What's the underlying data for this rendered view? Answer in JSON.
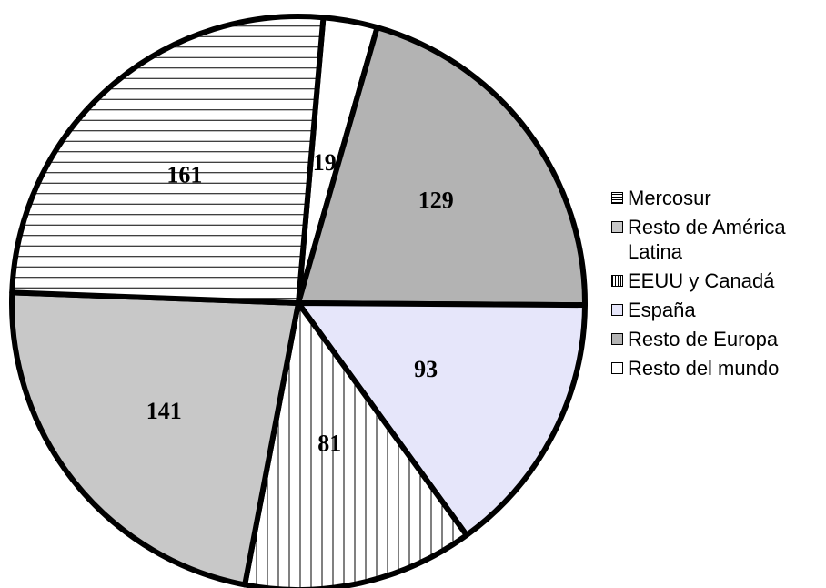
{
  "chart_data": {
    "type": "pie",
    "title": "",
    "slices": [
      {
        "label": "Resto del mundo",
        "value": 19,
        "fill": "#ffffff",
        "pattern": "none"
      },
      {
        "label": "Resto de Europa",
        "value": 129,
        "fill": "#b3b3b3",
        "pattern": "none"
      },
      {
        "label": "España",
        "value": 93,
        "fill": "#e6e6fa",
        "pattern": "none"
      },
      {
        "label": "EEUU y Canadá",
        "value": 81,
        "fill": "#ffffff",
        "pattern": "vertical-lines"
      },
      {
        "label": "Resto de América Latina",
        "value": 141,
        "fill": "#c8c8c8",
        "pattern": "none"
      },
      {
        "label": "Mercosur",
        "value": 161,
        "fill": "#ffffff",
        "pattern": "horizontal-lines"
      }
    ],
    "legend": {
      "position": "right",
      "order": [
        "Mercosur",
        "Resto de América Latina",
        "EEUU y Canadá",
        "España",
        "Resto de Europa",
        "Resto del mundo"
      ]
    }
  },
  "legend_items": [
    {
      "label": "Mercosur",
      "fill": "#ffffff",
      "pattern": "horizontal-lines"
    },
    {
      "label": "Resto de América Latina",
      "fill": "#c8c8c8",
      "pattern": "none"
    },
    {
      "label": "EEUU y Canadá",
      "fill": "#ffffff",
      "pattern": "vertical-lines"
    },
    {
      "label": "España",
      "fill": "#e6e6fa",
      "pattern": "none"
    },
    {
      "label": "Resto de Europa",
      "fill": "#b3b3b3",
      "pattern": "none"
    },
    {
      "label": "Resto del mundo",
      "fill": "#ffffff",
      "pattern": "none"
    }
  ]
}
